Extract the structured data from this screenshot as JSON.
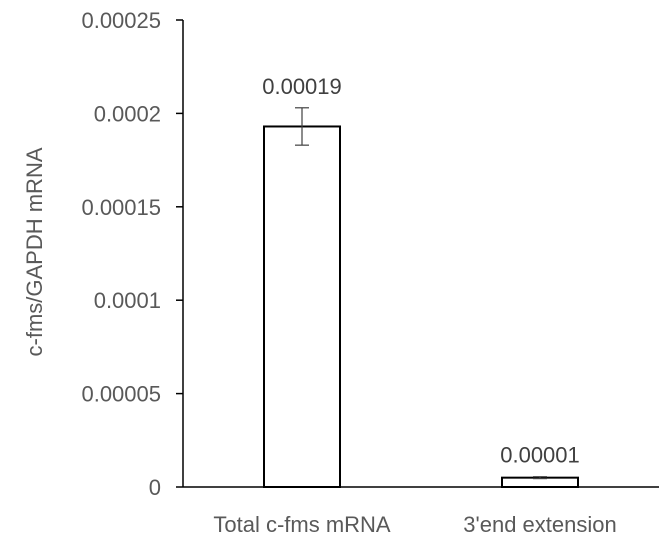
{
  "chart_data": {
    "type": "bar",
    "categories": [
      "Total c-fms mRNA",
      "3'end extension"
    ],
    "values": [
      0.000193,
      5e-06
    ],
    "errors": [
      1e-05,
      5e-07
    ],
    "data_labels": [
      "0.00019",
      "0.00001"
    ],
    "title": "",
    "xlabel": "",
    "ylabel": "c-fms/GAPDH mRNA",
    "ylim": [
      0,
      0.00025
    ],
    "yticks": [
      0,
      5e-05,
      0.0001,
      0.00015,
      0.0002,
      0.00025
    ],
    "ytick_labels": [
      "0",
      "0.00005",
      "0.0001",
      "0.00015",
      "0.0002",
      "0.00025"
    ],
    "grid": false,
    "colors": {
      "bar_fill": "#ffffff",
      "bar_stroke": "#000000",
      "axis": "#000000",
      "error": "#404040"
    }
  }
}
